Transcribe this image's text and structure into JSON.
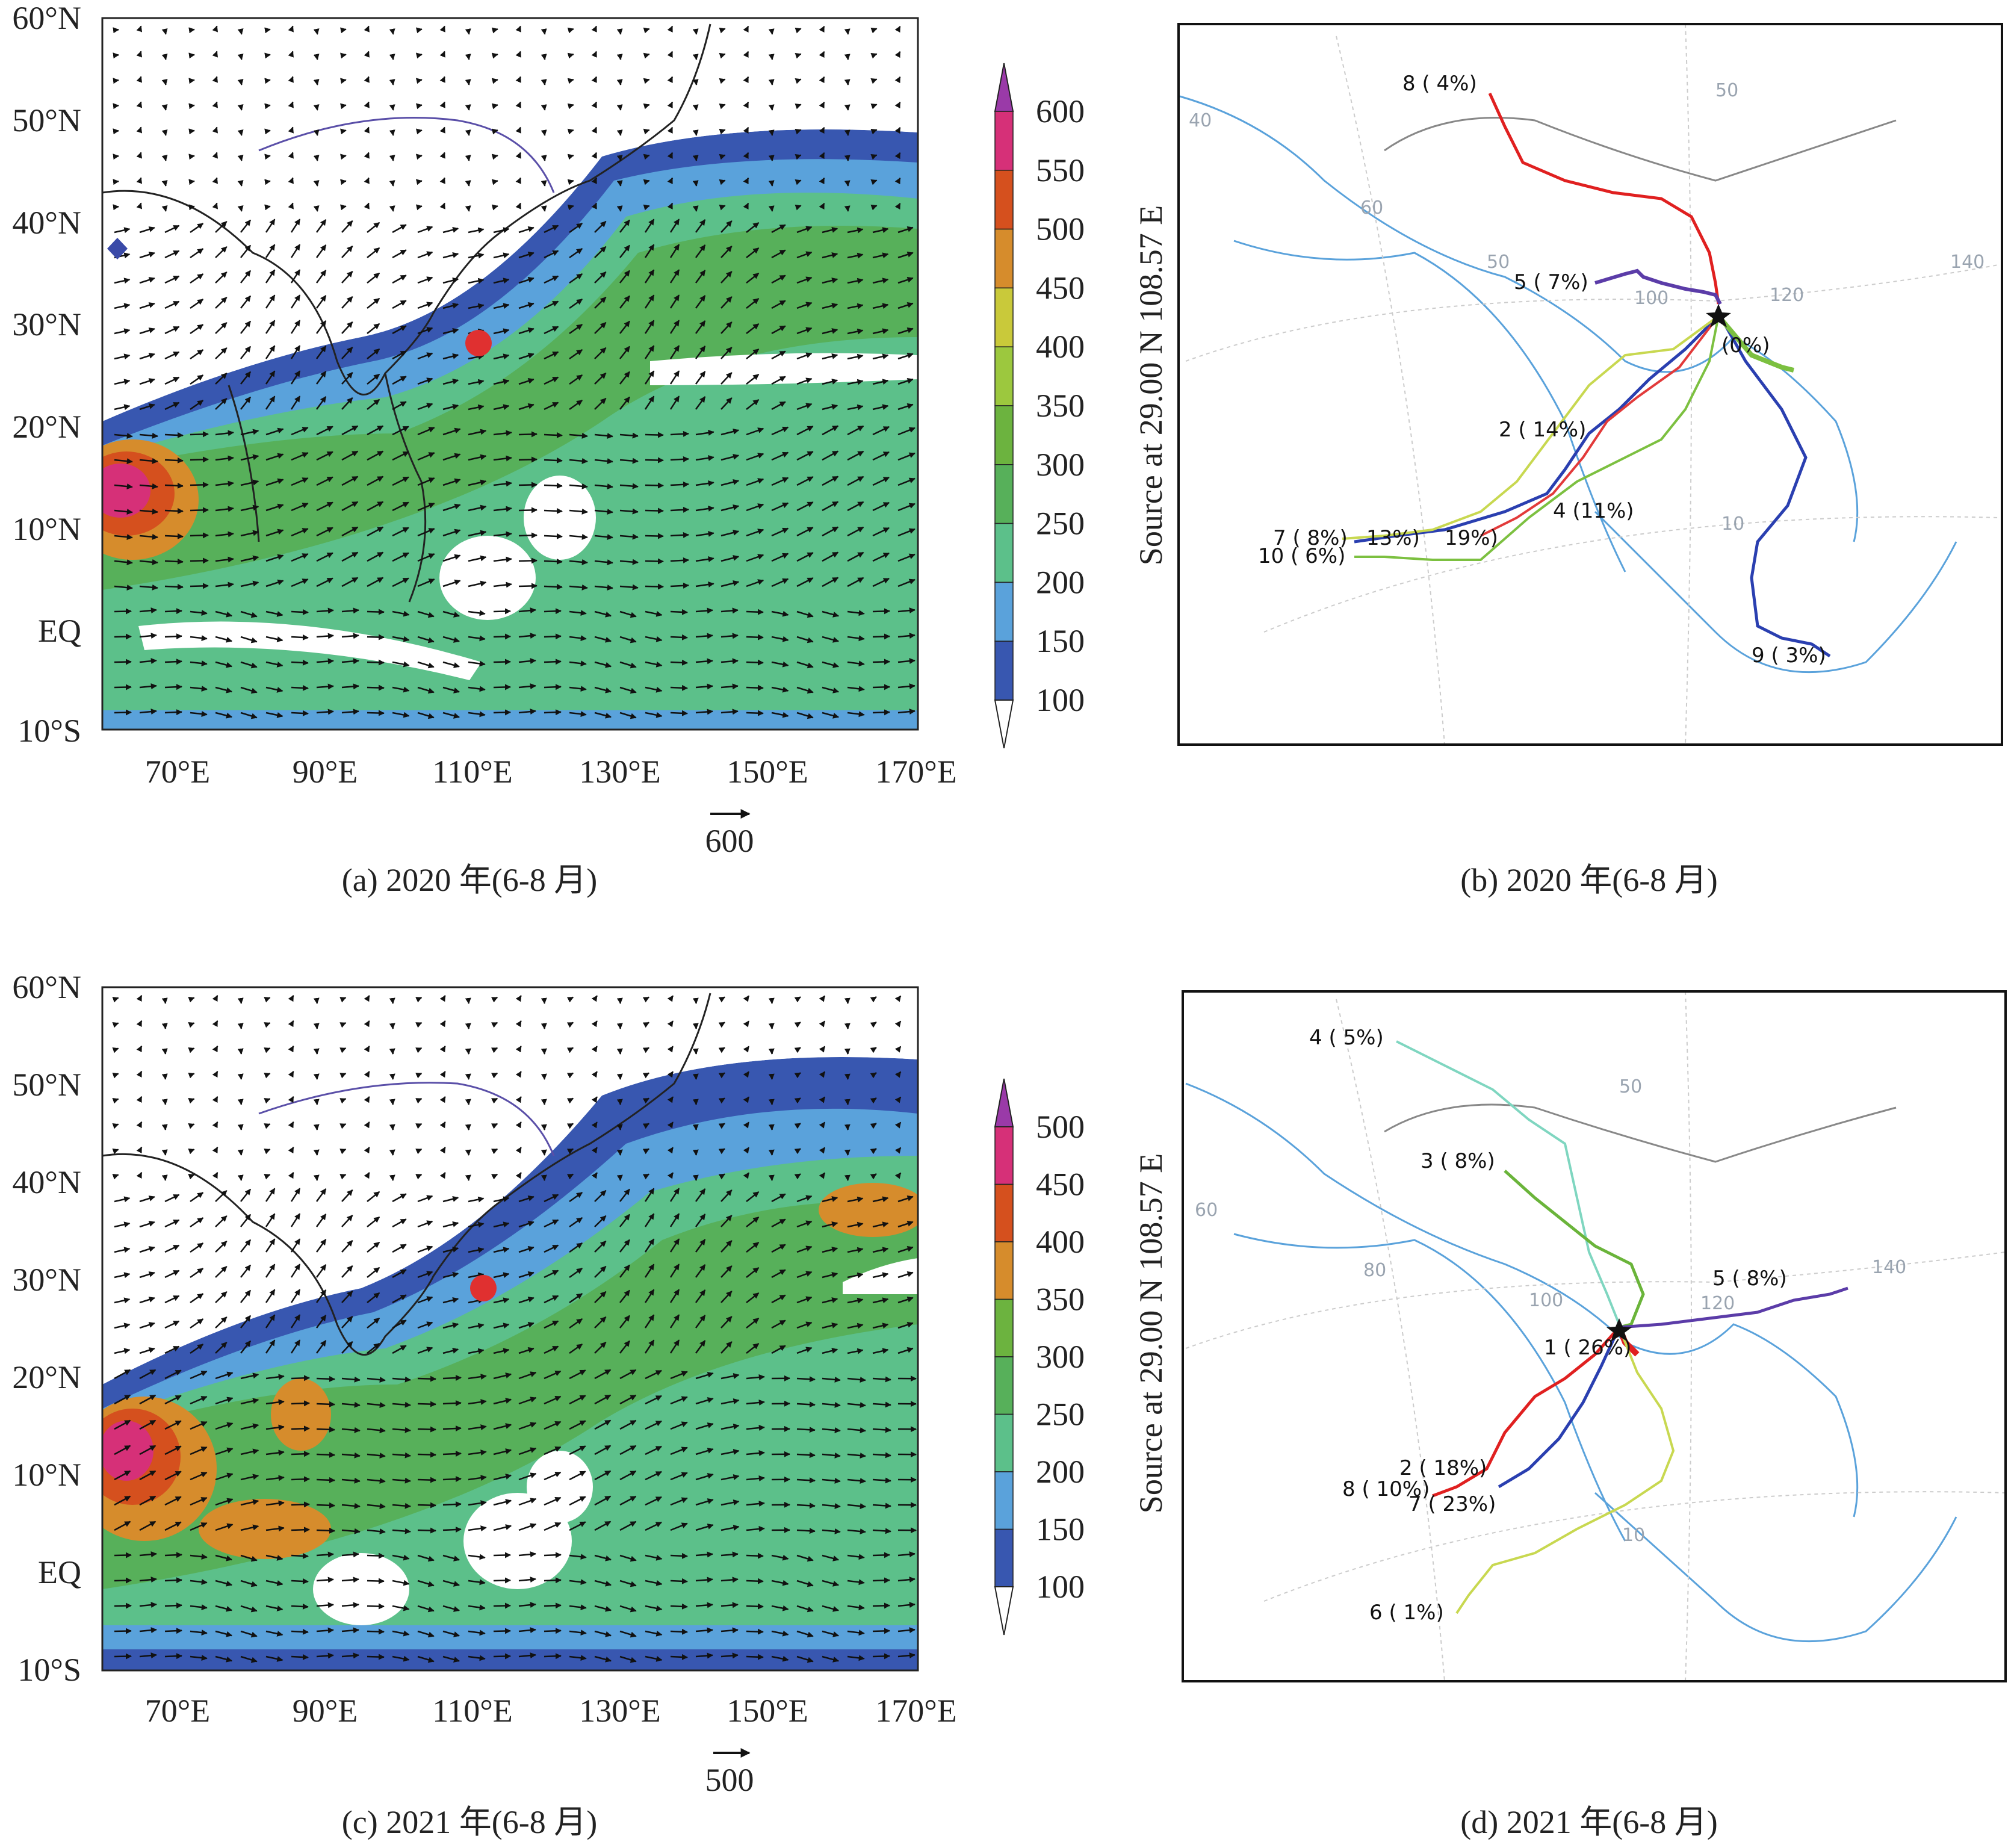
{
  "panels": [
    {
      "id": "a",
      "caption": "(a) 2020 年(6-8 月)",
      "lat_labels": [
        "60°N",
        "50°N",
        "40°N",
        "30°N",
        "20°N",
        "10°N",
        "EQ",
        "10°S"
      ],
      "lon_labels": [
        "70°E",
        "90°E",
        "110°E",
        "130°E",
        "150°E",
        "170°E"
      ],
      "colorbar_labels": [
        "600",
        "550",
        "500",
        "450",
        "400",
        "350",
        "300",
        "250",
        "200",
        "150",
        "100"
      ],
      "colorbar_colors": [
        "#d63078",
        "#d5501e",
        "#d68c2c",
        "#c9c93a",
        "#9cc83e",
        "#6cb33f",
        "#57b05a",
        "#5cc08a",
        "#5aa2db",
        "#3857b0"
      ],
      "ref_vector_label": "600"
    },
    {
      "id": "b",
      "caption": "(b) 2020 年(6-8 月)",
      "source_label": "Source at 29.00 N 108.57 E",
      "grid_labels": [
        "50",
        "60",
        "40",
        "50",
        "100",
        "120",
        "140",
        "10"
      ],
      "trajectories": [
        {
          "label": "8 ( 4%)",
          "color": "#e02020"
        },
        {
          "label": "5 ( 7%)",
          "color": "#5b3ca8"
        },
        {
          "label": "(0%)",
          "color": "#3a3aa8"
        },
        {
          "label": "2 ( 14%)",
          "color": "#2a3fb0"
        },
        {
          "label": "4 (11%)",
          "color": "#6ab43a"
        },
        {
          "label": "7 ( 8%)",
          "color": "#c8d850"
        },
        {
          "label": "13%)",
          "color": "#a8d460"
        },
        {
          "label": "19%)",
          "color": "#e23a3a"
        },
        {
          "label": "10 ( 6%)",
          "color": "#7cc040"
        },
        {
          "label": "9 ( 3%)",
          "color": "#2a3fb0"
        }
      ]
    },
    {
      "id": "c",
      "caption": "(c) 2021 年(6-8 月)",
      "lat_labels": [
        "60°N",
        "50°N",
        "40°N",
        "30°N",
        "20°N",
        "10°N",
        "EQ",
        "10°S"
      ],
      "lon_labels": [
        "70°E",
        "90°E",
        "110°E",
        "130°E",
        "150°E",
        "170°E"
      ],
      "colorbar_labels": [
        "500",
        "450",
        "400",
        "350",
        "300",
        "250",
        "200",
        "150",
        "100"
      ],
      "colorbar_colors": [
        "#d63078",
        "#d5501e",
        "#d68c2c",
        "#6cb33f",
        "#57b05a",
        "#5cc08a",
        "#5aa2db",
        "#3857b0"
      ],
      "ref_vector_label": "500"
    },
    {
      "id": "d",
      "caption": "(d) 2021 年(6-8 月)",
      "source_label": "Source at 29.00 N 108.57 E",
      "grid_labels": [
        "50",
        "60",
        "80",
        "100",
        "120",
        "140",
        "10"
      ],
      "trajectories": [
        {
          "label": "4 ( 5%)",
          "color": "#7fd6c0"
        },
        {
          "label": "3 ( 8%)",
          "color": "#6ab43a"
        },
        {
          "label": "5 ( 8%)",
          "color": "#5b3ca8"
        },
        {
          "label": "1 ( 26%)",
          "color": "#e02020"
        },
        {
          "label": "2 ( 18%)",
          "color": "#2a3fb0"
        },
        {
          "label": "8 ( 10%)",
          "color": "#e02020"
        },
        {
          "label": "7 ( 23%)",
          "color": "#3a5fc0"
        },
        {
          "label": "6 ( 1%)",
          "color": "#c8d850"
        }
      ]
    }
  ]
}
